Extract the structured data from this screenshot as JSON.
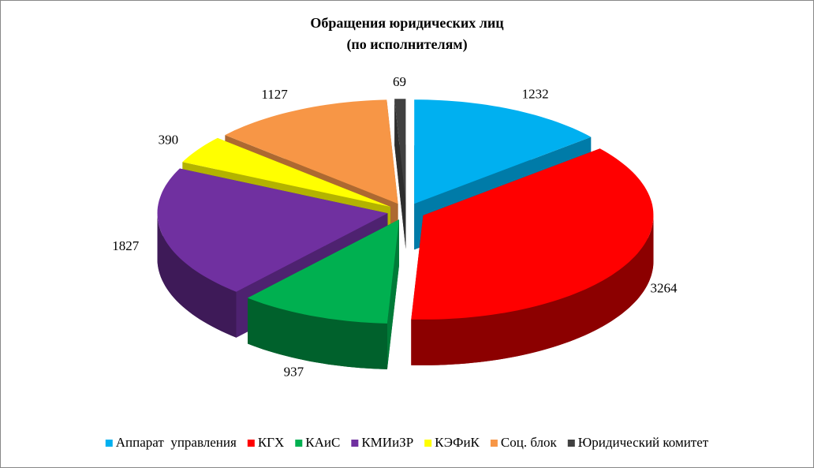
{
  "chart_data": {
    "type": "pie3d",
    "title": "Обращения юридических лиц",
    "subtitle": "(по исполнителям)",
    "categories": [
      "Аппарат  управления",
      "КГХ",
      "КАиС",
      "КМИиЗР",
      "КЭФиК",
      "Соц. блок",
      "Юридический комитет"
    ],
    "values": [
      1232,
      3264,
      937,
      1827,
      390,
      1127,
      69
    ],
    "colors": [
      "#00b0f0",
      "#ff0000",
      "#00b050",
      "#7030a0",
      "#ffff00",
      "#f79646",
      "#404040"
    ],
    "legend": "bottom"
  }
}
